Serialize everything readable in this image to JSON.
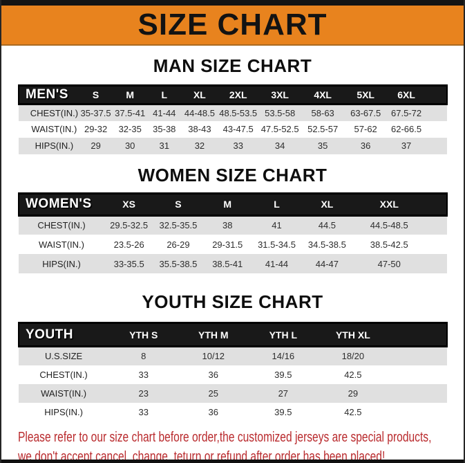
{
  "banner": {
    "title": "SIZE CHART"
  },
  "sections": [
    {
      "heading": "MAN SIZE CHART",
      "header_label": "MEN'S",
      "sizes": [
        "S",
        "M",
        "L",
        "XL",
        "2XL",
        "3XL",
        "4XL",
        "5XL",
        "6XL"
      ],
      "rows": [
        {
          "label": "CHEST(IN.)",
          "values": [
            "35-37.5",
            "37.5-41",
            "41-44",
            "44-48.5",
            "48.5-53.5",
            "53.5-58",
            "58-63",
            "63-67.5",
            "67.5-72"
          ]
        },
        {
          "label": "WAIST(IN.)",
          "values": [
            "29-32",
            "32-35",
            "35-38",
            "38-43",
            "43-47.5",
            "47.5-52.5",
            "52.5-57",
            "57-62",
            "62-66.5"
          ]
        },
        {
          "label": "HIPS(IN.)",
          "values": [
            "29",
            "30",
            "31",
            "32",
            "33",
            "34",
            "35",
            "36",
            "37"
          ]
        }
      ]
    },
    {
      "heading": "WOMEN SIZE CHART",
      "header_label": "WOMEN'S",
      "sizes": [
        "XS",
        "S",
        "M",
        "L",
        "XL",
        "XXL"
      ],
      "rows": [
        {
          "label": "CHEST(IN.)",
          "values": [
            "29.5-32.5",
            "32.5-35.5",
            "38",
            "41",
            "44.5",
            "44.5-48.5"
          ]
        },
        {
          "label": "WAIST(IN.)",
          "values": [
            "23.5-26",
            "26-29",
            "29-31.5",
            "31.5-34.5",
            "34.5-38.5",
            "38.5-42.5"
          ]
        },
        {
          "label": "HIPS(IN.)",
          "values": [
            "33-35.5",
            "35.5-38.5",
            "38.5-41",
            "41-44",
            "44-47",
            "47-50"
          ]
        }
      ]
    },
    {
      "heading": "YOUTH SIZE CHART",
      "header_label": "YOUTH",
      "sizes": [
        "YTH S",
        "YTH M",
        "YTH L",
        "YTH XL"
      ],
      "rows": [
        {
          "label": "U.S.SIZE",
          "values": [
            "8",
            "10/12",
            "14/16",
            "18/20"
          ]
        },
        {
          "label": "CHEST(IN.)",
          "values": [
            "33",
            "36",
            "39.5",
            "42.5"
          ]
        },
        {
          "label": "WAIST(IN.)",
          "values": [
            "23",
            "25",
            "27",
            "29"
          ]
        },
        {
          "label": "HIPS(IN.)",
          "values": [
            "33",
            "36",
            "39.5",
            "42.5"
          ]
        }
      ]
    }
  ],
  "footer": {
    "line1": "Please refer to our size chart before order,the customized jerseys are special products,",
    "line2": "we don't accept cancel, change, teturn or refund after order has been placed!"
  },
  "colors": {
    "banner_orange": "#e8831e",
    "header_black": "#191919",
    "row_gray": "#e0e0e0",
    "footer_red": "#b92a2d"
  }
}
